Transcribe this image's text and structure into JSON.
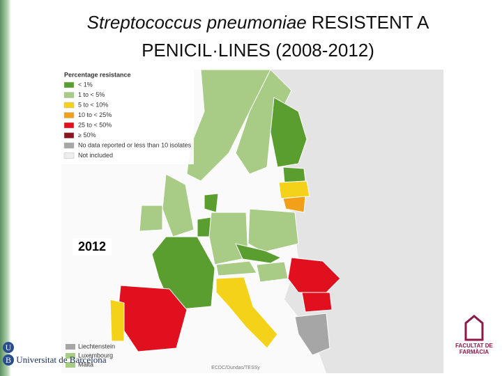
{
  "title": {
    "italic": "Streptococcus pneumoniae",
    "rest": "RESISTENT A PENICIL·LINES (2008-2012)"
  },
  "legend": {
    "title": "Percentage resistance",
    "items": [
      {
        "label": "< 1%",
        "color": "#5a9e2f"
      },
      {
        "label": "1 to < 5%",
        "color": "#a8cc85"
      },
      {
        "label": "5 to < 10%",
        "color": "#f5d21a"
      },
      {
        "label": "10 to < 25%",
        "color": "#f29f1a"
      },
      {
        "label": "25 to < 50%",
        "color": "#e0101e"
      },
      {
        "label": "≥ 50%",
        "color": "#8b1420"
      },
      {
        "label": "No data reported or less than 10 isolates",
        "color": "#a6a6a6"
      },
      {
        "label": "Not included",
        "color": "#eeeeee"
      }
    ]
  },
  "year": "2012",
  "small_countries": [
    {
      "label": "Liechtenstein",
      "color": "#a6a6a6"
    },
    {
      "label": "Luxembourg",
      "color": "#a8cc85"
    },
    {
      "label": "Malta",
      "color": "#a8cc85"
    }
  ],
  "source": "ECDC/Dundas/TESSy",
  "university": "Universitat de Barcelona",
  "faculty": "FACULTAT DE FARMÀCIA"
}
